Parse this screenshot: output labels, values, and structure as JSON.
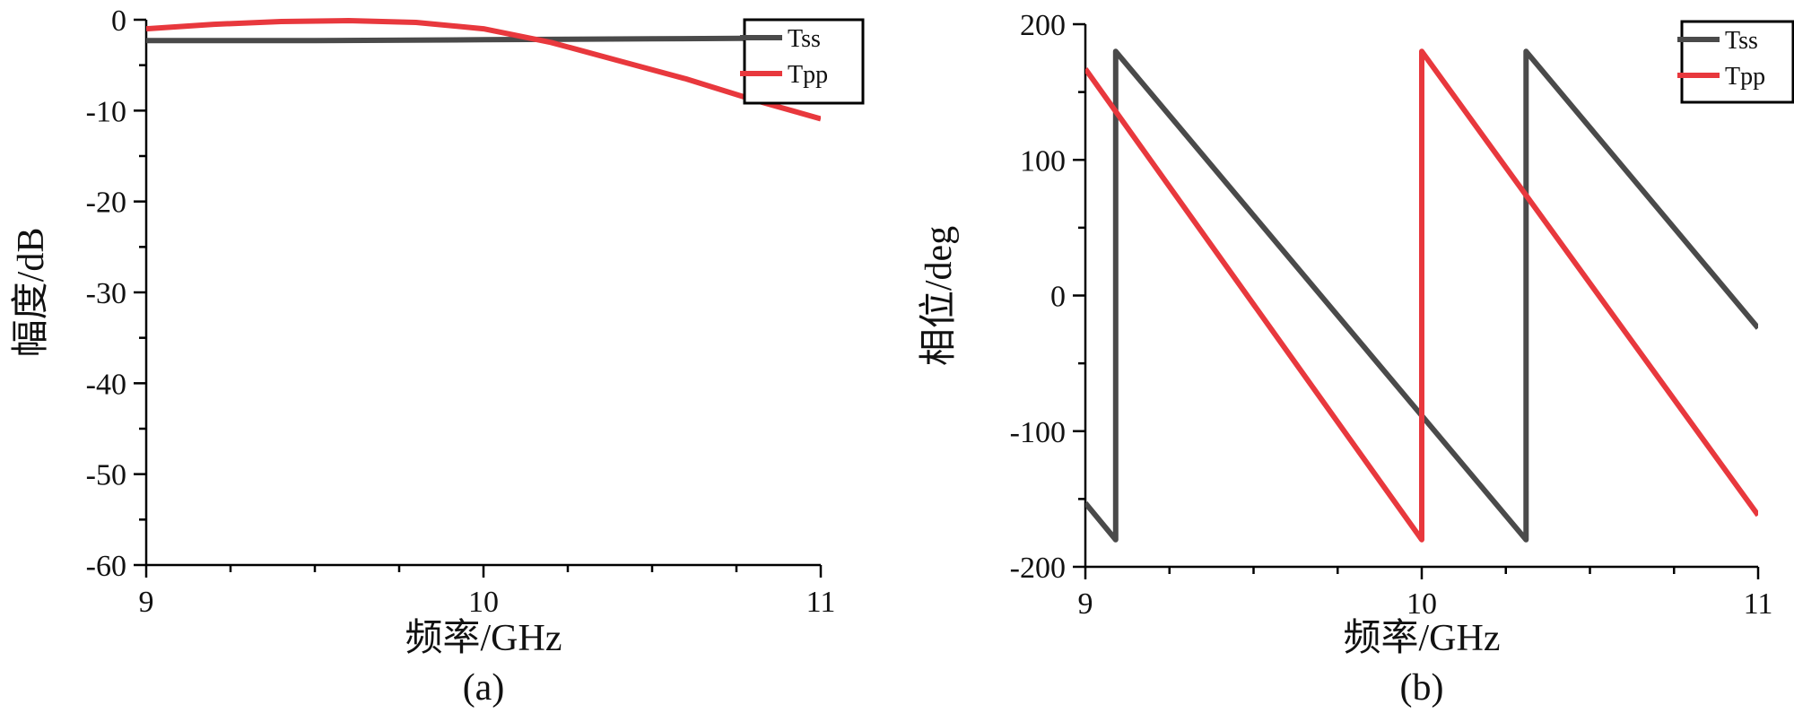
{
  "chart_data": [
    {
      "type": "line",
      "panel_label": "(a)",
      "xlabel": "频率/GHz",
      "ylabel": "幅度/dB",
      "xlim": [
        9,
        11
      ],
      "ylim": [
        -60,
        0
      ],
      "xticks": [
        9,
        10,
        11
      ],
      "yticks": [
        0,
        -10,
        -20,
        -30,
        -40,
        -50,
        -60
      ],
      "legend_position": "top-right",
      "series": [
        {
          "name": "Tss",
          "color": "#4a4a4a",
          "x": [
            9.0,
            9.5,
            10.0,
            10.5,
            11.0
          ],
          "y": [
            -2.3,
            -2.3,
            -2.2,
            -2.1,
            -2.0
          ]
        },
        {
          "name": "Tpp",
          "color": "#e8383d",
          "x": [
            9.0,
            9.2,
            9.4,
            9.6,
            9.8,
            10.0,
            10.2,
            10.4,
            10.6,
            10.8,
            11.0
          ],
          "y": [
            -1.0,
            -0.5,
            -0.2,
            -0.1,
            -0.3,
            -1.0,
            -2.5,
            -4.5,
            -6.5,
            -8.8,
            -10.9
          ]
        }
      ]
    },
    {
      "type": "line",
      "panel_label": "(b)",
      "xlabel": "频率/GHz",
      "ylabel": "相位/deg",
      "xlim": [
        9,
        11
      ],
      "ylim": [
        -200,
        200
      ],
      "xticks": [
        9,
        10,
        11
      ],
      "yticks": [
        200,
        100,
        0,
        -100,
        -200
      ],
      "legend_position": "top-right",
      "series": [
        {
          "name": "Tss",
          "color": "#4a4a4a",
          "x": [
            9.0,
            9.09,
            9.09,
            10.31,
            10.31,
            11.0
          ],
          "y": [
            -153,
            -180,
            180,
            -180,
            180,
            -24
          ]
        },
        {
          "name": "Tpp",
          "color": "#e8383d",
          "x": [
            9.0,
            10.0,
            10.0,
            11.0
          ],
          "y": [
            167,
            -180,
            180,
            -162
          ]
        }
      ]
    }
  ]
}
